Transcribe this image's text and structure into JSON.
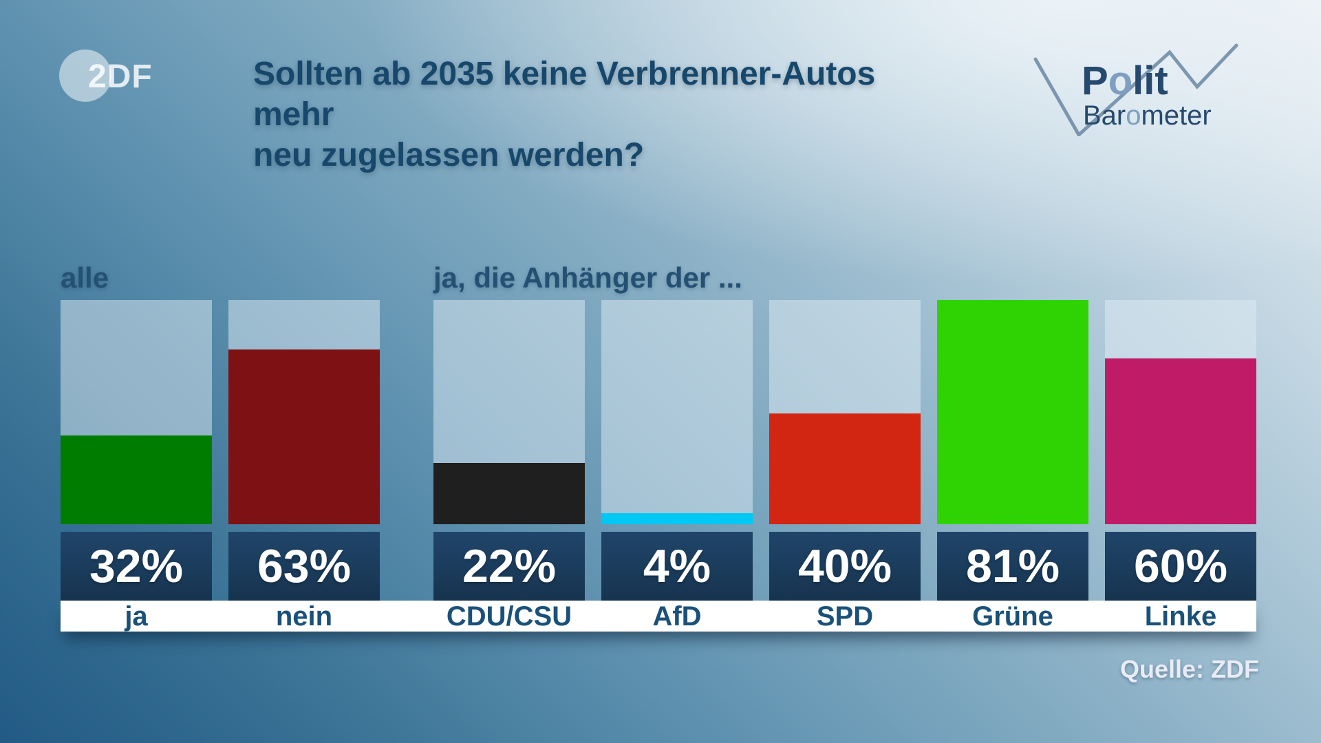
{
  "header": {
    "zdf_logo_text": "2DF",
    "title_line1": "Sollten ab 2035 keine Verbrenner-Autos mehr",
    "title_line2": "neu zugelassen werden?",
    "politbarometer": {
      "polit_pre": "P",
      "polit_o": "o",
      "polit_rest": "lit",
      "baro_pre": "Bar",
      "baro_o": "o",
      "baro_rest": "meter"
    }
  },
  "footer": {
    "source": "Quelle: ZDF"
  },
  "colors": {
    "badge_navy_top": "#20456a",
    "badge_navy_bottom": "#16344f",
    "title_blue": "#17486b",
    "category_label_blue": "#1a5179",
    "band_white": "#ffffff",
    "zigzag_blue_gray": "#6a87a2",
    "column_overlay": "rgba(223,235,244,0.50)"
  },
  "chart_data": {
    "type": "bar",
    "title": "Sollten ab 2035 keine Verbrenner-Autos mehr neu zugelassen werden?",
    "value_suffix": "%",
    "scale_max": 81,
    "ylim": [
      0,
      81
    ],
    "grid": false,
    "legend_position": "none",
    "source": "Quelle: ZDF",
    "groups": [
      {
        "label": "alle",
        "bars": [
          {
            "category": "ja",
            "value": 32,
            "color": "#007c00"
          },
          {
            "category": "nein",
            "value": 63,
            "color": "#7e1113"
          }
        ]
      },
      {
        "label": "ja, die Anhänger der ...",
        "bars": [
          {
            "category": "CDU/CSU",
            "value": 22,
            "color": "#1f1f1f"
          },
          {
            "category": "AfD",
            "value": 4,
            "color": "#00c8f5"
          },
          {
            "category": "SPD",
            "value": 40,
            "color": "#d22512"
          },
          {
            "category": "Grüne",
            "value": 81,
            "color": "#2fd303"
          },
          {
            "category": "Linke",
            "value": 60,
            "color": "#c01b66"
          }
        ]
      }
    ]
  }
}
